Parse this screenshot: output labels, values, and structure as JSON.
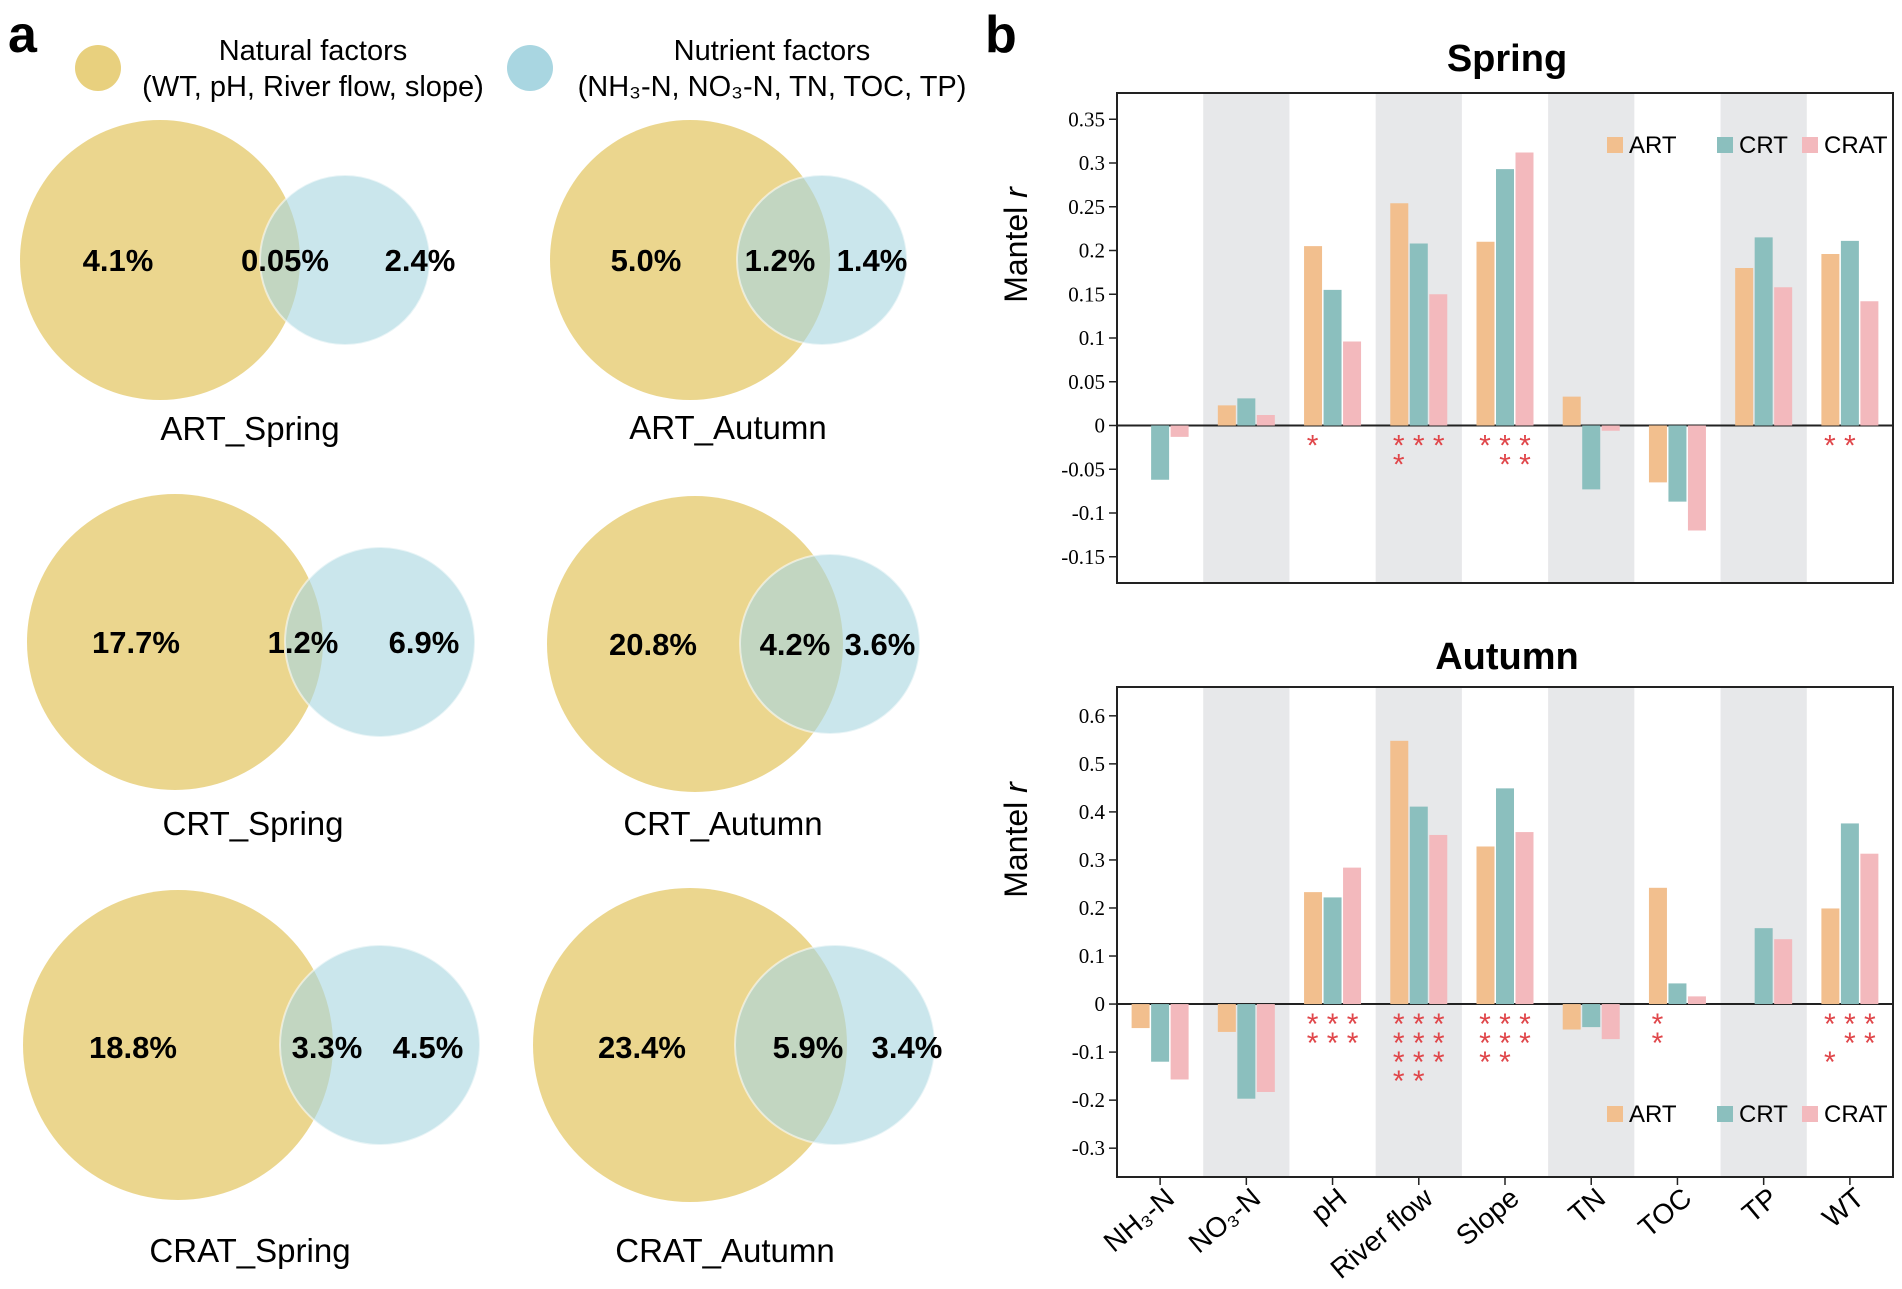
{
  "panels": {
    "a_label": "a",
    "b_label": "b"
  },
  "colors": {
    "natural": "#e8d07e",
    "nutrient": "#a9d6e1",
    "ART": "#f2bf8e",
    "CRT": "#8bbfbe",
    "CRAT": "#f3b9bd",
    "band": "#e7e8ea",
    "star": "#e0464a"
  },
  "venn_legend": {
    "natural_title": "Natural factors",
    "natural_list": "(WT, pH, River flow, slope)",
    "nutrient_title": "Nutrient factors",
    "nutrient_list": "(NH₃-N, NO₃-N, TN, TOC, TP)"
  },
  "venns": [
    {
      "label": "ART_Spring",
      "natural": "4.1%",
      "shared": "0.05%",
      "nutrient": "2.4%"
    },
    {
      "label": "ART_Autumn",
      "natural": "5.0%",
      "shared": "1.2%",
      "nutrient": "1.4%"
    },
    {
      "label": "CRT_Spring",
      "natural": "17.7%",
      "shared": "1.2%",
      "nutrient": "6.9%"
    },
    {
      "label": "CRT_Autumn",
      "natural": "20.8%",
      "shared": "4.2%",
      "nutrient": "3.6%"
    },
    {
      "label": "CRAT_Spring",
      "natural": "18.8%",
      "shared": "3.3%",
      "nutrient": "4.5%"
    },
    {
      "label": "CRAT_Autumn",
      "natural": "23.4%",
      "shared": "5.9%",
      "nutrient": "3.4%"
    }
  ],
  "chart_data": [
    {
      "type": "bar",
      "title": "Spring",
      "ylabel": "Mantel r",
      "ylim": [
        -0.18,
        0.38
      ],
      "yticks": [
        "0.35",
        "0.3",
        "0.25",
        "0.2",
        "0.15",
        "0.1",
        "0.05",
        "0",
        "-0.05",
        "-0.1",
        "-0.15"
      ],
      "ytick_values": [
        0.35,
        0.3,
        0.25,
        0.2,
        0.15,
        0.1,
        0.05,
        0,
        -0.05,
        -0.1,
        -0.15
      ],
      "legend_position": "top-right",
      "categories": [
        "NH₃-N",
        "NO₃-N",
        "pH",
        "River flow",
        "Slope",
        "TN",
        "TOC",
        "TP",
        "WT"
      ],
      "series": [
        {
          "name": "ART",
          "values": [
            0.0,
            0.023,
            0.205,
            0.254,
            0.21,
            0.033,
            -0.065,
            0.18,
            0.196
          ]
        },
        {
          "name": "CRT",
          "values": [
            -0.062,
            0.031,
            0.155,
            0.208,
            0.293,
            -0.073,
            -0.087,
            0.215,
            0.211
          ]
        },
        {
          "name": "CRAT",
          "values": [
            -0.013,
            0.012,
            0.096,
            0.15,
            0.312,
            -0.006,
            -0.12,
            0.158,
            0.142
          ]
        }
      ],
      "significance": [
        [
          [],
          [],
          [],
          []
        ],
        [
          [],
          [],
          [],
          []
        ],
        [
          [
            "*",
            "",
            ""
          ],
          [],
          [],
          []
        ],
        [
          [
            "*",
            "*",
            "*"
          ],
          [
            "*",
            "",
            ""
          ],
          [],
          []
        ],
        [
          [
            "*",
            "*",
            "*"
          ],
          [
            "",
            "*",
            "*"
          ],
          [],
          []
        ],
        [
          [],
          [],
          [],
          []
        ],
        [
          [],
          [],
          [],
          []
        ],
        [
          [],
          [],
          [],
          []
        ],
        [
          [
            "*",
            "*",
            ""
          ],
          [],
          [],
          []
        ]
      ]
    },
    {
      "type": "bar",
      "title": "Autumn",
      "ylabel": "Mantel r",
      "ylim": [
        -0.36,
        0.66
      ],
      "yticks": [
        "0.6",
        "0.5",
        "0.4",
        "0.3",
        "0.2",
        "0.1",
        "0",
        "-0.1",
        "-0.2",
        "-0.3"
      ],
      "ytick_values": [
        0.6,
        0.5,
        0.4,
        0.3,
        0.2,
        0.1,
        0,
        -0.1,
        -0.2,
        -0.3
      ],
      "legend_position": "bottom-right",
      "categories": [
        "NH₃-N",
        "NO₃-N",
        "pH",
        "River flow",
        "Slope",
        "TN",
        "TOC",
        "TP",
        "WT"
      ],
      "series": [
        {
          "name": "ART",
          "values": [
            -0.05,
            -0.058,
            0.233,
            0.548,
            0.328,
            -0.053,
            0.242,
            0.0,
            0.199
          ]
        },
        {
          "name": "CRT",
          "values": [
            -0.12,
            -0.197,
            0.222,
            0.411,
            0.449,
            -0.048,
            0.043,
            0.158,
            0.376
          ]
        },
        {
          "name": "CRAT",
          "values": [
            -0.157,
            -0.183,
            0.284,
            0.352,
            0.358,
            -0.073,
            0.016,
            0.135,
            0.313
          ]
        }
      ],
      "significance": [
        [
          [],
          [],
          [],
          []
        ],
        [
          [],
          [],
          [],
          []
        ],
        [
          [
            "*",
            "*",
            "*"
          ],
          [
            "*",
            "*",
            "*"
          ],
          [],
          []
        ],
        [
          [
            "*",
            "*",
            "*"
          ],
          [
            "*",
            "*",
            "*"
          ],
          [
            "*",
            "*",
            "*"
          ],
          [
            "*",
            "*",
            ""
          ]
        ],
        [
          [
            "*",
            "*",
            "*"
          ],
          [
            "*",
            "*",
            "*"
          ],
          [
            "*",
            "*",
            ""
          ],
          []
        ],
        [
          [],
          [],
          [],
          []
        ],
        [
          [
            "*",
            "",
            ""
          ],
          [
            "*",
            "",
            ""
          ],
          [],
          []
        ],
        [
          [],
          [],
          [],
          []
        ],
        [
          [
            "*",
            "*",
            "*"
          ],
          [
            "",
            "*",
            "*"
          ],
          [
            "*",
            "",
            ""
          ],
          []
        ]
      ]
    }
  ]
}
